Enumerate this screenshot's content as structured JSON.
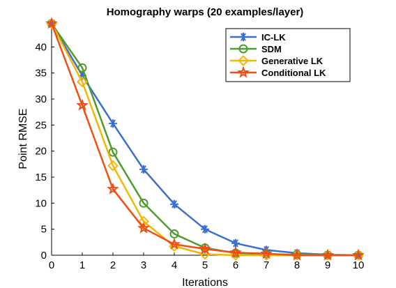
{
  "chart_data": {
    "type": "line",
    "title": "Homography warps (20 examples/layer)",
    "xlabel": "Iterations",
    "ylabel": "Point RMSE",
    "xlim": [
      0,
      10
    ],
    "ylim": [
      0,
      45
    ],
    "xticks": [
      "0",
      "1",
      "2",
      "3",
      "4",
      "5",
      "6",
      "7",
      "8",
      "9",
      "10"
    ],
    "yticks": [
      "0",
      "5",
      "10",
      "15",
      "20",
      "25",
      "30",
      "35",
      "40"
    ],
    "x": [
      0,
      1,
      2,
      3,
      4,
      5,
      6,
      7,
      8,
      9,
      10
    ],
    "legend_position": "top-right",
    "grid": false,
    "series": [
      {
        "name": "IC-LK",
        "color": "#3a6fd0",
        "marker": "asterisk",
        "values": [
          44.5,
          34.5,
          25.3,
          16.5,
          9.8,
          5.0,
          2.3,
          1.0,
          0.4,
          0.1,
          0.0
        ]
      },
      {
        "name": "SDM",
        "color": "#4e9a2e",
        "marker": "circle",
        "values": [
          44.5,
          36.0,
          19.8,
          10.0,
          4.1,
          1.4,
          0.4,
          0.2,
          0.1,
          0.0,
          0.0
        ]
      },
      {
        "name": "Generative LK",
        "color": "#f2b705",
        "marker": "diamond",
        "values": [
          44.5,
          33.3,
          17.2,
          6.5,
          1.7,
          0.2,
          0.0,
          0.0,
          0.0,
          0.0,
          0.0
        ]
      },
      {
        "name": "Conditional LK",
        "color": "#ef4e14",
        "marker": "star",
        "values": [
          44.5,
          28.8,
          12.7,
          5.2,
          2.1,
          1.2,
          0.5,
          0.3,
          0.0,
          0.0,
          0.0
        ]
      }
    ]
  }
}
